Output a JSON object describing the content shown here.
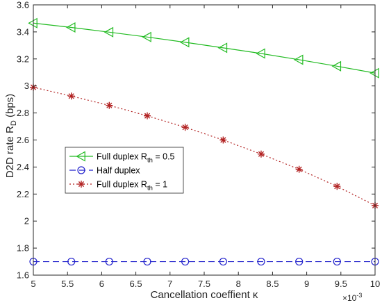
{
  "chart_data": {
    "type": "line",
    "xlabel": "Cancellation coeffient κ",
    "ylabel_main": "D2D rate R",
    "ylabel_sub": "D",
    "ylabel_tail": " (bps)",
    "x_multiplier": {
      "base": "×10",
      "exp": "-3"
    },
    "xlim": [
      5,
      10
    ],
    "ylim": [
      1.6,
      3.6
    ],
    "x_ticks": [
      5,
      5.5,
      6,
      6.5,
      7,
      7.5,
      8,
      8.5,
      9,
      9.5,
      10
    ],
    "x_tick_labels": [
      "5",
      "5.5",
      "6",
      "6.5",
      "7",
      "7.5",
      "8",
      "8.5",
      "9",
      "9.5",
      "10"
    ],
    "y_ticks": [
      1.6,
      1.8,
      2,
      2.2,
      2.4,
      2.6,
      2.8,
      3,
      3.2,
      3.4,
      3.6
    ],
    "y_tick_labels": [
      "1.6",
      "1.8",
      "2",
      "2.2",
      "2.4",
      "2.6",
      "2.8",
      "3",
      "3.2",
      "3.4",
      "3.6"
    ],
    "legend_position": "center-left",
    "grid": false,
    "x": [
      5,
      5.556,
      6.111,
      6.667,
      7.222,
      7.778,
      8.333,
      8.889,
      9.444,
      10
    ],
    "series": [
      {
        "name_main": "Full duplex R",
        "name_sub": "th",
        "name_tail": " = 0.5",
        "color": "#22bb22",
        "marker": "triangle-left",
        "line": "solid",
        "values": [
          3.465,
          3.433,
          3.398,
          3.362,
          3.323,
          3.282,
          3.24,
          3.194,
          3.146,
          3.095
        ]
      },
      {
        "name_main": "Half duplex",
        "name_sub": "",
        "name_tail": "",
        "color": "#2222cc",
        "marker": "circle",
        "line": "dashed",
        "values": [
          1.7,
          1.7,
          1.7,
          1.7,
          1.7,
          1.7,
          1.7,
          1.7,
          1.7,
          1.7
        ]
      },
      {
        "name_main": "Full duplex R",
        "name_sub": "th",
        "name_tail": " = 1",
        "color": "#b22222",
        "marker": "asterisk",
        "line": "dotted",
        "values": [
          2.99,
          2.925,
          2.856,
          2.779,
          2.694,
          2.6,
          2.496,
          2.383,
          2.257,
          2.115
        ]
      }
    ]
  }
}
